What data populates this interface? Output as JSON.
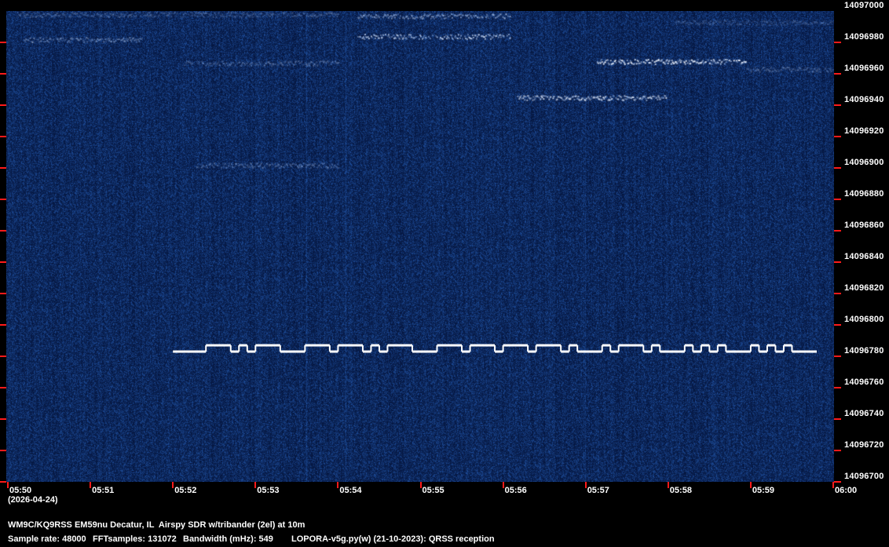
{
  "chart_data": {
    "type": "heatmap",
    "subtype": "QRSS waterfall spectrogram",
    "colormap": {
      "background": "#06194c",
      "noise": "#1a4aa0",
      "signal": "#ffffff",
      "tick": "#ff1a1a"
    },
    "x_axis": {
      "tick_labels": [
        "05:50",
        "05:51",
        "05:52",
        "05:53",
        "05:54",
        "05:55",
        "05:56",
        "05:57",
        "05:58",
        "05:59",
        "06:00"
      ],
      "range": [
        "05:50:00",
        "06:00:00"
      ],
      "date_label": "(2026-04-24)"
    },
    "y_axis": {
      "position": "right",
      "tick_labels": [
        "14097000",
        "14096980",
        "14096960",
        "14096940",
        "14096920",
        "14096900",
        "14096880",
        "14096860",
        "14096840",
        "14096820",
        "14096800",
        "14096780",
        "14096760",
        "14096740",
        "14096720",
        "14096700"
      ],
      "range": [
        14096700,
        14097000
      ]
    },
    "fsk_trace": {
      "low_freq": 14096783,
      "high_freq": 14096787,
      "transitions": [
        "05:52:00",
        "05:52:24",
        "05:52:42",
        "05:52:48",
        "05:52:54",
        "05:53:00",
        "05:53:18",
        "05:53:36",
        "05:53:54",
        "05:54:00",
        "05:54:18",
        "05:54:24",
        "05:54:30",
        "05:54:36",
        "05:54:54",
        "05:55:12",
        "05:55:30",
        "05:55:36",
        "05:55:54",
        "05:56:00",
        "05:56:18",
        "05:56:24",
        "05:56:42",
        "05:56:48",
        "05:56:54",
        "05:57:12",
        "05:57:18",
        "05:57:24",
        "05:57:42",
        "05:57:48",
        "05:57:54",
        "05:58:12",
        "05:58:18",
        "05:58:24",
        "05:58:30",
        "05:58:36",
        "05:58:42",
        "05:59:00",
        "05:59:06",
        "05:59:12",
        "05:59:18",
        "05:59:24",
        "05:59:30",
        "05:59:48"
      ],
      "levels": [
        "low",
        "high",
        "low",
        "high",
        "low",
        "high",
        "low",
        "high",
        "low",
        "high",
        "low",
        "high",
        "low",
        "high",
        "low",
        "high",
        "low",
        "high",
        "low",
        "high",
        "low",
        "high",
        "low",
        "high",
        "low",
        "high",
        "low",
        "high",
        "low",
        "high",
        "low",
        "high",
        "low",
        "high",
        "low",
        "high",
        "low",
        "high",
        "low",
        "high",
        "low",
        "high",
        "low"
      ]
    },
    "other_signals": [
      {
        "start": "05:50:06",
        "end": "05:54:00",
        "freq": 14096998,
        "intensity": 0.3
      },
      {
        "start": "05:54:14",
        "end": "05:56:05",
        "freq": 14096997,
        "intensity": 0.55
      },
      {
        "start": "05:50:11",
        "end": "05:51:37",
        "freq": 14096982,
        "intensity": 0.45
      },
      {
        "start": "05:54:14",
        "end": "05:56:05",
        "freq": 14096984,
        "intensity": 0.7
      },
      {
        "start": "05:52:08",
        "end": "05:54:00",
        "freq": 14096967,
        "intensity": 0.35
      },
      {
        "start": "05:52:17",
        "end": "05:54:00",
        "freq": 14096902,
        "intensity": 0.35
      },
      {
        "start": "05:57:08",
        "end": "05:58:57",
        "freq": 14096968,
        "intensity": 0.95
      },
      {
        "start": "05:58:57",
        "end": "06:00:00",
        "freq": 14096963,
        "intensity": 0.35
      },
      {
        "start": "05:56:09",
        "end": "05:57:59",
        "freq": 14096945,
        "intensity": 0.85
      },
      {
        "start": "05:58:05",
        "end": "06:00:00",
        "freq": 14096993,
        "intensity": 0.25
      }
    ]
  },
  "footer": {
    "station": "WM9C/KQ9RSS EM59nu Decatur, IL  Airspy SDR w/tribander (2el) at 10m",
    "sample_rate": "Sample rate: 48000",
    "fft_samples": "FFTsamples: 131072",
    "bandwidth": "Bandwidth (mHz): 549",
    "software": "LOPORA-v5g.py(w) (21-10-2023): QRSS reception"
  }
}
